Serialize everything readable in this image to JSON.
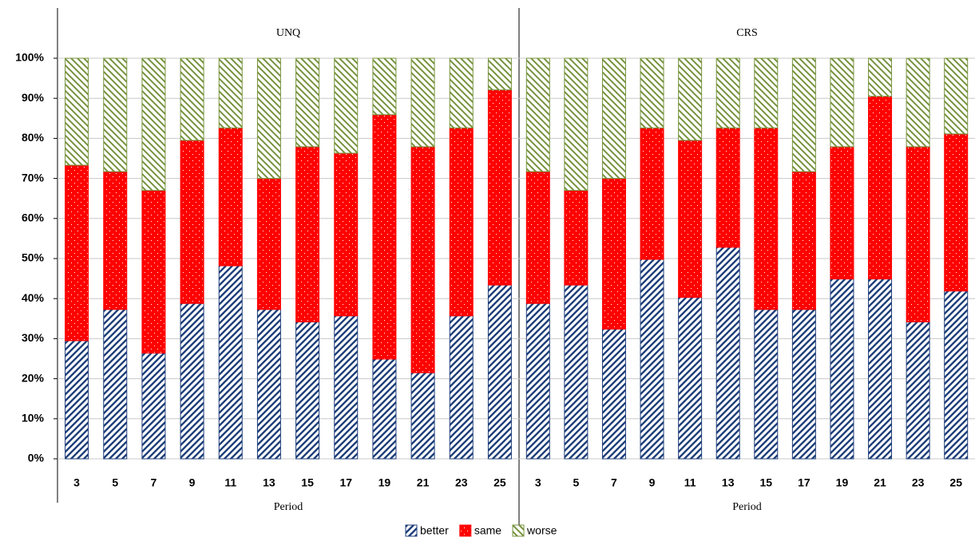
{
  "chart_data": {
    "type": "bar",
    "stacked": true,
    "ylim": [
      0,
      100
    ],
    "yticks": [
      {
        "value": 0,
        "label": "0%"
      },
      {
        "value": 10,
        "label": "10%"
      },
      {
        "value": 20,
        "label": "20%"
      },
      {
        "value": 30,
        "label": "30%"
      },
      {
        "value": 40,
        "label": "40%"
      },
      {
        "value": 50,
        "label": "50%"
      },
      {
        "value": 60,
        "label": "60%"
      },
      {
        "value": 70,
        "label": "70%"
      },
      {
        "value": 80,
        "label": "80%"
      },
      {
        "value": 90,
        "label": "90%"
      },
      {
        "value": 100,
        "label": "100%"
      }
    ],
    "grid": true,
    "legend": "bottom",
    "series": [
      {
        "name": "better",
        "color": "#1f3f7a"
      },
      {
        "name": "same",
        "color": "#ff0000"
      },
      {
        "name": "worse",
        "color": "#76923c"
      }
    ],
    "panels": [
      {
        "title": "UNQ",
        "xlabel": "Period",
        "categories": [
          "3",
          "5",
          "7",
          "9",
          "11",
          "13",
          "15",
          "17",
          "19",
          "21",
          "23",
          "25"
        ],
        "values": [
          [
            29.5,
            37.3,
            26.4,
            38.8,
            48.2,
            37.3,
            34.2,
            35.7,
            24.9,
            21.5,
            35.7,
            43.4
          ],
          [
            43.8,
            34.4,
            40.6,
            40.7,
            34.4,
            32.7,
            43.7,
            40.6,
            61,
            56.4,
            46.9,
            48.7
          ],
          [
            26.7,
            28.3,
            33,
            20.5,
            17.4,
            30,
            22.1,
            23.7,
            14.1,
            22.1,
            17.4,
            7.9
          ]
        ]
      },
      {
        "title": "CRS",
        "xlabel": "Period",
        "categories": [
          "3",
          "5",
          "7",
          "9",
          "11",
          "13",
          "15",
          "17",
          "19",
          "21",
          "23",
          "25"
        ],
        "values": [
          [
            38.8,
            43.4,
            32.4,
            49.8,
            40.3,
            52.8,
            37.3,
            37.3,
            44.9,
            44.9,
            34.2,
            41.9
          ],
          [
            32.9,
            23.6,
            37.6,
            32.8,
            39.2,
            29.8,
            45.3,
            34.4,
            33,
            45.6,
            43.7,
            39.2
          ],
          [
            28.3,
            33,
            30,
            17.4,
            20.5,
            17.4,
            17.4,
            28.3,
            22.1,
            9.5,
            22.1,
            18.9
          ]
        ]
      }
    ]
  }
}
